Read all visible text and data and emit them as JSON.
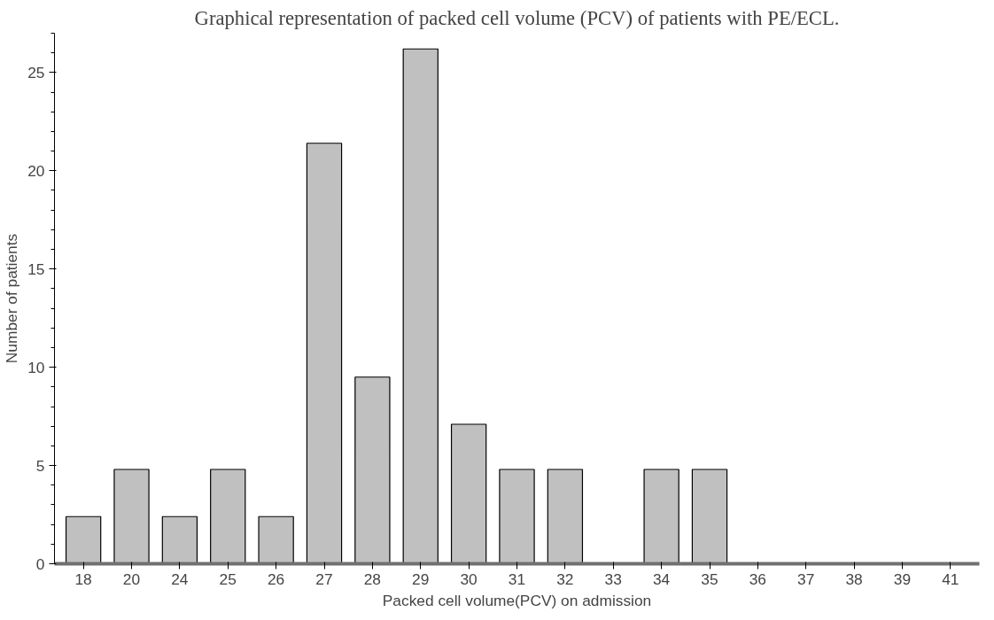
{
  "chart_data": {
    "type": "bar",
    "title": "Graphical representation of packed cell volume (PCV) of patients with PE/ECL.",
    "xlabel": "Packed cell volume(PCV) on admission",
    "ylabel": "Number of patients",
    "categories": [
      "18",
      "20",
      "24",
      "25",
      "26",
      "27",
      "28",
      "29",
      "30",
      "31",
      "32",
      "33",
      "34",
      "35",
      "36",
      "37",
      "38",
      "39",
      "41"
    ],
    "values": [
      2.4,
      4.8,
      2.4,
      4.8,
      2.4,
      21.4,
      9.5,
      26.2,
      7.1,
      4.8,
      4.8,
      0,
      4.8,
      4.8,
      0,
      0,
      0,
      0,
      0
    ],
    "color": "#c0c0c0",
    "ylim": [
      0,
      27
    ],
    "yticks": [
      0,
      5,
      10,
      15,
      20,
      25
    ],
    "grid": false
  }
}
